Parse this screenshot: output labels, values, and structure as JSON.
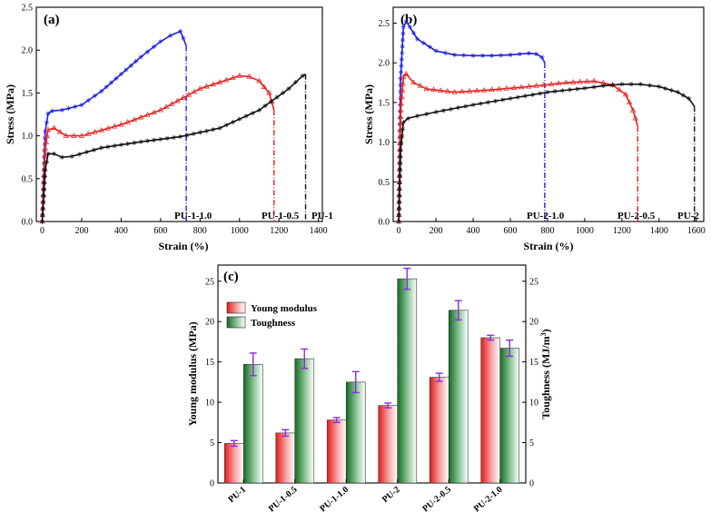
{
  "chart_data": [
    {
      "panel_label": "(a)",
      "type": "line",
      "xlabel": "Strain (%)",
      "ylabel": "Stress (MPa)",
      "xlim": [
        -30,
        1420
      ],
      "ylim": [
        0,
        2.5
      ],
      "xticks": [
        "0",
        "200",
        "400",
        "600",
        "800",
        "1000",
        "1200",
        "1400"
      ],
      "yticks": [
        "0.0",
        "0.5",
        "1.0",
        "1.5",
        "2.0",
        "2.5"
      ],
      "series": [
        {
          "name": "PU-1-1.0",
          "color": "#1f1fe6",
          "marker": "star",
          "x": [
            0,
            15,
            30,
            50,
            100,
            200,
            300,
            400,
            500,
            600,
            650,
            700,
            715,
            730
          ],
          "y": [
            0,
            1.05,
            1.26,
            1.29,
            1.3,
            1.36,
            1.52,
            1.72,
            1.92,
            2.1,
            2.17,
            2.22,
            2.14,
            2.05
          ],
          "break_strain": 730,
          "label": "PU-1-1.0"
        },
        {
          "name": "PU-1-0.5",
          "color": "#e62020",
          "marker": "triangle",
          "x": [
            0,
            15,
            30,
            60,
            120,
            200,
            400,
            600,
            800,
            1000,
            1050,
            1100,
            1150,
            1175
          ],
          "y": [
            0,
            0.85,
            1.07,
            1.09,
            1.0,
            1.0,
            1.13,
            1.3,
            1.55,
            1.7,
            1.69,
            1.64,
            1.5,
            1.3
          ],
          "break_strain": 1175,
          "label": "PU-1-0.5"
        },
        {
          "name": "PU-1",
          "color": "#111111",
          "marker": "star",
          "x": [
            0,
            15,
            30,
            60,
            100,
            150,
            300,
            500,
            700,
            900,
            1100,
            1250,
            1320,
            1335
          ],
          "y": [
            0,
            0.6,
            0.79,
            0.79,
            0.75,
            0.76,
            0.86,
            0.93,
            0.99,
            1.09,
            1.3,
            1.55,
            1.7,
            1.72
          ],
          "break_strain": 1335,
          "label": "PU-1"
        }
      ]
    },
    {
      "panel_label": "(b)",
      "type": "line",
      "xlabel": "Strain (%)",
      "ylabel": "Stress (MPa)",
      "xlim": [
        -30,
        1640
      ],
      "ylim": [
        0,
        2.7
      ],
      "xticks": [
        "0",
        "200",
        "400",
        "600",
        "800",
        "1000",
        "1200",
        "1400",
        "1600"
      ],
      "yticks": [
        "0.0",
        "0.5",
        "1.0",
        "1.5",
        "2.0",
        "2.5"
      ],
      "series": [
        {
          "name": "PU-2-1.0",
          "color": "#1f1fe6",
          "marker": "star",
          "x": [
            0,
            10,
            25,
            40,
            60,
            100,
            200,
            300,
            400,
            500,
            600,
            700,
            740,
            770,
            785
          ],
          "y": [
            0,
            1.8,
            2.45,
            2.52,
            2.45,
            2.3,
            2.15,
            2.1,
            2.09,
            2.09,
            2.1,
            2.12,
            2.11,
            2.07,
            2.0
          ],
          "break_strain": 785,
          "label": "PU-2-1.0"
        },
        {
          "name": "PU-2-0.5",
          "color": "#e62020",
          "marker": "triangle",
          "x": [
            0,
            10,
            25,
            40,
            80,
            150,
            300,
            500,
            700,
            900,
            1050,
            1150,
            1220,
            1260,
            1285
          ],
          "y": [
            0,
            1.4,
            1.82,
            1.86,
            1.75,
            1.67,
            1.63,
            1.66,
            1.7,
            1.75,
            1.77,
            1.72,
            1.6,
            1.4,
            1.2
          ],
          "break_strain": 1285,
          "label": "PU-2-0.5"
        },
        {
          "name": "PU-2",
          "color": "#111111",
          "marker": "star",
          "x": [
            0,
            10,
            25,
            50,
            100,
            200,
            400,
            600,
            800,
            1000,
            1100,
            1200,
            1300,
            1400,
            1500,
            1560,
            1590
          ],
          "y": [
            0,
            0.9,
            1.25,
            1.3,
            1.33,
            1.38,
            1.47,
            1.55,
            1.63,
            1.68,
            1.71,
            1.73,
            1.73,
            1.7,
            1.63,
            1.55,
            1.45
          ],
          "break_strain": 1590,
          "label": "PU-2"
        }
      ]
    },
    {
      "panel_label": "(c)",
      "type": "bar",
      "categories": [
        "PU-1",
        "PU-1-0.5",
        "PU-1-1.0",
        "PU-2",
        "PU-2-0.5",
        "PU-2-1.0"
      ],
      "ylabel": "Young modulus (MPa)",
      "ylabel2_prefix": "Toughness (MJ/m",
      "ylabel2_sup": "3",
      "ylabel2_suffix": ")",
      "ylim": [
        0,
        27
      ],
      "ylim2": [
        0,
        27
      ],
      "yticks": [
        "0",
        "5",
        "10",
        "15",
        "20",
        "25"
      ],
      "series": [
        {
          "name": "Young modulus",
          "axis": "left",
          "color": "#e62020",
          "values": [
            4.9,
            6.2,
            7.8,
            9.6,
            13.1,
            18.0
          ],
          "errors": [
            0.35,
            0.4,
            0.3,
            0.3,
            0.5,
            0.3
          ]
        },
        {
          "name": "Toughness",
          "axis": "right",
          "color": "#1f7a2e",
          "values": [
            14.7,
            15.4,
            12.5,
            25.3,
            21.4,
            16.7
          ],
          "errors": [
            1.4,
            1.2,
            1.3,
            1.3,
            1.2,
            1.0
          ]
        }
      ],
      "errorbar_color": "#8a2be2",
      "legend_position": "top-left"
    }
  ]
}
